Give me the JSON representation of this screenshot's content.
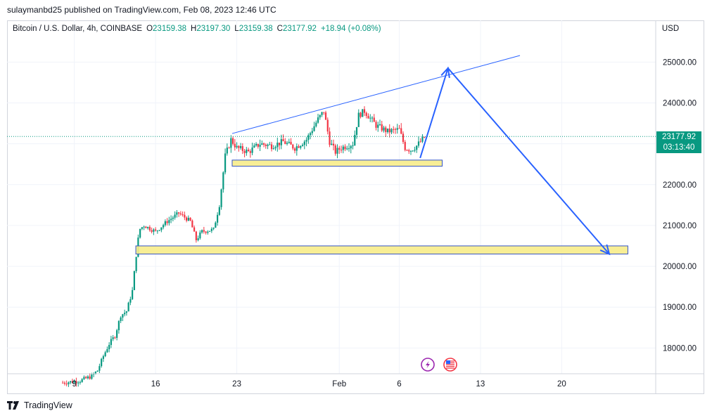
{
  "header": {
    "publisher_line": "sulaymanbd25 published on TradingView.com, Feb 08, 2023 12:46 UTC"
  },
  "legend": {
    "symbol": "Bitcoin / U.S. Dollar, 4h, COINBASE",
    "open_label": "O",
    "open": "23159.38",
    "high_label": "H",
    "high": "23197.30",
    "low_label": "L",
    "low": "23159.38",
    "close_label": "C",
    "close": "23177.92",
    "change": "+18.94 (+0.08%)"
  },
  "price_tag": {
    "price": "23177.92",
    "countdown": "03:13:40"
  },
  "footer": {
    "brand": "TradingView"
  },
  "colors": {
    "up": "#089981",
    "down": "#f23645",
    "drawing": "#2962ff",
    "zone_fill": "#f7ec8a",
    "zone_border": "#3454c7"
  },
  "icons": [
    "tv-logo-icon",
    "strike-icon",
    "us-flag-icon"
  ],
  "chart_data": {
    "type": "candlestick",
    "currency": "USD",
    "timeframe": "4h",
    "y_ticks": [
      18000,
      19000,
      20000,
      21000,
      22000,
      23000,
      24000,
      25000
    ],
    "y_tick_labels": [
      "18000.00",
      "19000.00",
      "20000.00",
      "21000.00",
      "22000.00",
      "23000.00",
      "24000.00",
      "25000.00"
    ],
    "ylim": [
      17370,
      26020
    ],
    "x_ticks": [
      {
        "label": "9",
        "day": 9
      },
      {
        "label": "16",
        "day": 16
      },
      {
        "label": "23",
        "day": 23
      },
      {
        "label": "Feb",
        "day": 31.83
      },
      {
        "label": "6",
        "day": 37
      },
      {
        "label": "13",
        "day": 44
      },
      {
        "label": "20",
        "day": 51
      }
    ],
    "xlim": [
      3.2,
      59.1
    ],
    "last_price": 23177.92,
    "series": [
      {
        "day": 8.0,
        "close": 17150
      },
      {
        "day": 9.5,
        "close": 17200
      },
      {
        "day": 10.5,
        "close": 17310
      },
      {
        "day": 11.0,
        "close": 17450
      },
      {
        "day": 11.5,
        "close": 17800
      },
      {
        "day": 12.0,
        "close": 18100
      },
      {
        "day": 12.5,
        "close": 18300
      },
      {
        "day": 13.0,
        "close": 18800
      },
      {
        "day": 13.5,
        "close": 18900
      },
      {
        "day": 14.0,
        "close": 19400
      },
      {
        "day": 14.3,
        "close": 20200
      },
      {
        "day": 14.6,
        "close": 20900
      },
      {
        "day": 15.0,
        "close": 21000
      },
      {
        "day": 16.0,
        "close": 20850
      },
      {
        "day": 17.0,
        "close": 21100
      },
      {
        "day": 18.0,
        "close": 21300
      },
      {
        "day": 19.0,
        "close": 21100
      },
      {
        "day": 19.5,
        "close": 20650
      },
      {
        "day": 20.0,
        "close": 20850
      },
      {
        "day": 21.0,
        "close": 20900
      },
      {
        "day": 21.5,
        "close": 21500
      },
      {
        "day": 22.0,
        "close": 22700
      },
      {
        "day": 22.5,
        "close": 23100
      },
      {
        "day": 23.0,
        "close": 22900
      },
      {
        "day": 24.0,
        "close": 22800
      },
      {
        "day": 25.0,
        "close": 23000
      },
      {
        "day": 26.0,
        "close": 22950
      },
      {
        "day": 27.0,
        "close": 23050
      },
      {
        "day": 28.0,
        "close": 22900
      },
      {
        "day": 29.0,
        "close": 23100
      },
      {
        "day": 30.0,
        "close": 23600
      },
      {
        "day": 30.5,
        "close": 23800
      },
      {
        "day": 31.0,
        "close": 23050
      },
      {
        "day": 31.5,
        "close": 22800
      },
      {
        "day": 32.0,
        "close": 22900
      },
      {
        "day": 33.0,
        "close": 23000
      },
      {
        "day": 33.5,
        "close": 23700
      },
      {
        "day": 34.0,
        "close": 23800
      },
      {
        "day": 35.0,
        "close": 23450
      },
      {
        "day": 36.0,
        "close": 23300
      },
      {
        "day": 37.0,
        "close": 23350
      },
      {
        "day": 37.5,
        "close": 22900
      },
      {
        "day": 38.0,
        "close": 22850
      },
      {
        "day": 38.5,
        "close": 22950
      },
      {
        "day": 39.0,
        "close": 23100
      },
      {
        "day": 39.3,
        "close": 23200
      }
    ],
    "annotations": {
      "trend_line": [
        [
          22.6,
          23250
        ],
        [
          47.4,
          25160
        ]
      ],
      "zones": [
        {
          "x0": 22.6,
          "x1": 40.7,
          "y0": 22450,
          "y1": 22600
        },
        {
          "x0": 14.3,
          "x1": 56.7,
          "y0": 20300,
          "y1": 20500
        }
      ],
      "projection_path": [
        [
          38.8,
          22650
        ],
        [
          41.2,
          24850
        ],
        [
          55.1,
          20300
        ]
      ],
      "arrowheads": [
        [
          41.2,
          24850
        ],
        [
          55.1,
          20300
        ]
      ]
    }
  }
}
